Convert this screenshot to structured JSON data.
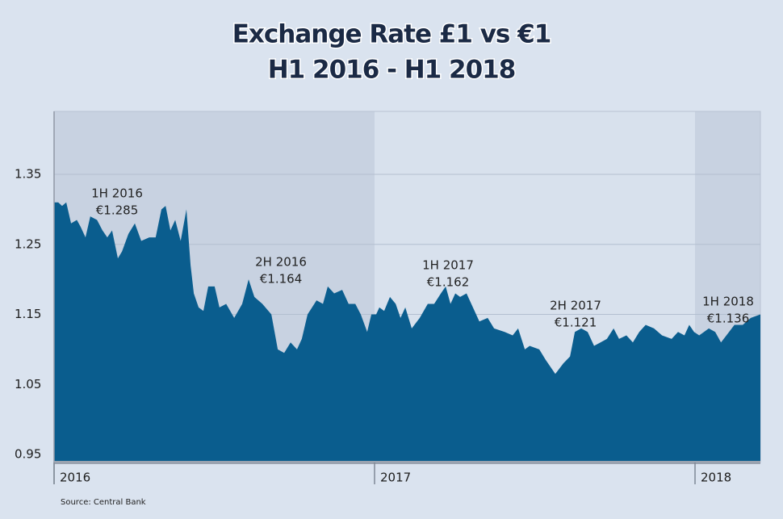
{
  "chart_data": {
    "type": "area",
    "title": "Exchange Rate £1 vs €1",
    "subtitle": "H1 2016 - H1 2018",
    "source": "Source: Central Bank",
    "color": "#0a5d8e",
    "grid": true,
    "xlim": [
      2016,
      2018.204
    ],
    "xticks": [
      2016,
      2017,
      2018
    ],
    "ylim": [
      0.95,
      1.44
    ],
    "yticks": [
      0.95,
      1.05,
      1.15,
      1.25,
      1.35
    ],
    "x": [
      2016,
      2016.013,
      2016.025,
      2016.038,
      2016.053,
      2016.071,
      2016.083,
      2016.098,
      2016.113,
      2016.134,
      2016.151,
      2016.166,
      2016.181,
      2016.199,
      2016.212,
      2016.232,
      2016.252,
      2016.272,
      2016.297,
      2016.317,
      2016.335,
      2016.348,
      2016.363,
      2016.378,
      2016.395,
      2016.413,
      2016.426,
      2016.436,
      2016.451,
      2016.466,
      2016.481,
      2016.501,
      2016.516,
      2016.537,
      2016.562,
      2016.587,
      2016.607,
      2016.625,
      2016.65,
      2016.678,
      2016.698,
      2016.718,
      2016.738,
      2016.758,
      2016.773,
      2016.791,
      2016.819,
      2016.839,
      2016.854,
      2016.874,
      2016.899,
      2016.919,
      2016.94,
      2016.957,
      2016.977,
      2016.99,
      2017.005,
      2017.015,
      2017.03,
      2017.048,
      2017.066,
      2017.081,
      2017.096,
      2017.116,
      2017.141,
      2017.166,
      2017.186,
      2017.207,
      2017.222,
      2017.237,
      2017.252,
      2017.267,
      2017.287,
      2017.307,
      2017.327,
      2017.353,
      2017.373,
      2017.406,
      2017.431,
      2017.448,
      2017.469,
      2017.484,
      2017.514,
      2017.534,
      2017.564,
      2017.589,
      2017.61,
      2017.625,
      2017.645,
      2017.665,
      2017.685,
      2017.705,
      2017.725,
      2017.746,
      2017.763,
      2017.786,
      2017.806,
      2017.826,
      2017.846,
      2017.872,
      2017.897,
      2017.927,
      2017.947,
      2017.967,
      2017.982,
      2017.997,
      2018.013,
      2018.028,
      2018.043,
      2018.063,
      2018.081,
      2018.098,
      2018.123,
      2018.149,
      2018.174,
      2018.204
    ],
    "values": [
      1.31,
      1.31,
      1.305,
      1.31,
      1.28,
      1.285,
      1.275,
      1.26,
      1.29,
      1.285,
      1.27,
      1.26,
      1.27,
      1.23,
      1.24,
      1.265,
      1.28,
      1.255,
      1.26,
      1.26,
      1.3,
      1.305,
      1.27,
      1.285,
      1.255,
      1.3,
      1.22,
      1.18,
      1.16,
      1.155,
      1.19,
      1.19,
      1.16,
      1.165,
      1.145,
      1.165,
      1.2,
      1.175,
      1.165,
      1.15,
      1.1,
      1.095,
      1.11,
      1.1,
      1.115,
      1.15,
      1.17,
      1.165,
      1.19,
      1.18,
      1.185,
      1.165,
      1.165,
      1.15,
      1.125,
      1.15,
      1.15,
      1.16,
      1.155,
      1.175,
      1.165,
      1.145,
      1.16,
      1.13,
      1.145,
      1.165,
      1.165,
      1.18,
      1.19,
      1.165,
      1.18,
      1.175,
      1.18,
      1.16,
      1.14,
      1.145,
      1.13,
      1.125,
      1.12,
      1.13,
      1.1,
      1.105,
      1.1,
      1.085,
      1.065,
      1.08,
      1.09,
      1.125,
      1.13,
      1.125,
      1.105,
      1.11,
      1.115,
      1.13,
      1.115,
      1.12,
      1.11,
      1.125,
      1.135,
      1.13,
      1.12,
      1.115,
      1.125,
      1.12,
      1.135,
      1.125,
      1.12,
      1.125,
      1.13,
      1.125,
      1.11,
      1.12,
      1.135,
      1.135,
      1.145,
      1.15
    ],
    "annotations": [
      {
        "title": "1H 2016",
        "text": "€1.285"
      },
      {
        "title": "2H 2016",
        "text": "€1.164"
      },
      {
        "title": "1H 2017",
        "text": "€1.162"
      },
      {
        "title": "2H 2017",
        "text": "€1.121"
      },
      {
        "title": "1H 2018",
        "text": "€1.136"
      }
    ]
  }
}
